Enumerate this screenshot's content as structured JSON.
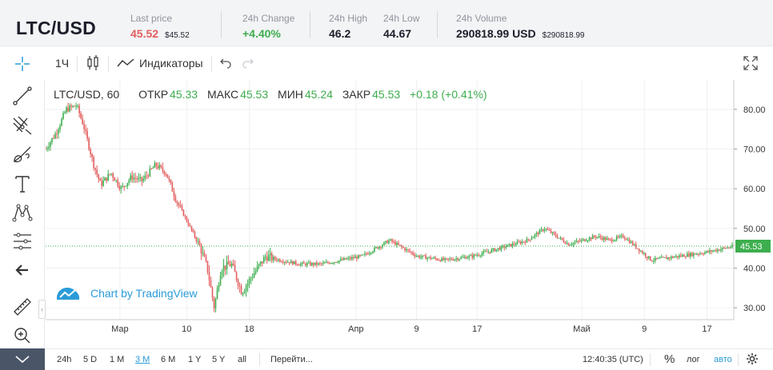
{
  "ticker": {
    "pair": "LTC/USD",
    "last_price": {
      "label": "Last price",
      "value": "45.52",
      "sub": "$45.52"
    },
    "change_24h": {
      "label": "24h Change",
      "value": "+4.40%"
    },
    "high_24h": {
      "label": "24h High",
      "value": "46.2"
    },
    "low_24h": {
      "label": "24h Low",
      "value": "44.67"
    },
    "volume_24h": {
      "label": "24h Volume",
      "value": "290818.99 USD",
      "sub": "$290818.99"
    }
  },
  "toolbar": {
    "interval": "1Ч",
    "indicators_label": "Индикаторы"
  },
  "legend": {
    "title": "LTC/USD, 60",
    "open_label": "ОТКР",
    "open": "45.33",
    "high_label": "МАКС",
    "high": "45.53",
    "low_label": "МИН",
    "low": "45.24",
    "close_label": "ЗАКР",
    "close": "45.53",
    "change": "+0.18 (+0.41%)"
  },
  "watermark": "Chart by TradingView",
  "bottom": {
    "ranges": [
      "24h",
      "5 D",
      "1 M",
      "3 M",
      "6 M",
      "1 Y",
      "5 Y",
      "all"
    ],
    "active_range": "3 M",
    "goto": "Перейти...",
    "time": "12:40:35 (UTC)",
    "percent": "%",
    "log": "лог",
    "auto": "авто"
  },
  "colors": {
    "up": "#3dae4e",
    "down": "#e35d5d",
    "accent": "#2a9bd8",
    "price_line": "#3dae4e"
  },
  "chart_data": {
    "type": "candlestick",
    "title": "LTC/USD, 60",
    "x_ticks": [
      "Мар",
      "10",
      "18",
      "Апр",
      "9",
      "17",
      "Май",
      "9",
      "17"
    ],
    "y_ticks": [
      30,
      40,
      50,
      60,
      70,
      80
    ],
    "ylim": [
      27,
      85
    ],
    "last_price": 45.53,
    "grid": true,
    "path": [
      [
        0,
        70
      ],
      [
        0.015,
        74
      ],
      [
        0.03,
        80
      ],
      [
        0.045,
        81
      ],
      [
        0.055,
        76
      ],
      [
        0.07,
        66
      ],
      [
        0.08,
        61
      ],
      [
        0.095,
        64
      ],
      [
        0.11,
        60
      ],
      [
        0.125,
        63
      ],
      [
        0.14,
        62
      ],
      [
        0.16,
        66
      ],
      [
        0.175,
        64
      ],
      [
        0.19,
        57
      ],
      [
        0.205,
        52
      ],
      [
        0.225,
        45
      ],
      [
        0.235,
        40
      ],
      [
        0.245,
        30
      ],
      [
        0.255,
        40
      ],
      [
        0.27,
        41
      ],
      [
        0.285,
        34
      ],
      [
        0.3,
        38
      ],
      [
        0.32,
        43
      ],
      [
        0.34,
        42
      ],
      [
        0.37,
        41
      ],
      [
        0.4,
        41
      ],
      [
        0.43,
        42
      ],
      [
        0.46,
        43
      ],
      [
        0.5,
        47
      ],
      [
        0.54,
        43
      ],
      [
        0.58,
        42
      ],
      [
        0.62,
        43
      ],
      [
        0.66,
        45
      ],
      [
        0.7,
        47
      ],
      [
        0.725,
        50
      ],
      [
        0.76,
        46
      ],
      [
        0.8,
        48
      ],
      [
        0.82,
        47
      ],
      [
        0.84,
        48
      ],
      [
        0.88,
        42
      ],
      [
        0.92,
        43
      ],
      [
        0.96,
        44
      ],
      [
        1.0,
        45.5
      ]
    ]
  }
}
